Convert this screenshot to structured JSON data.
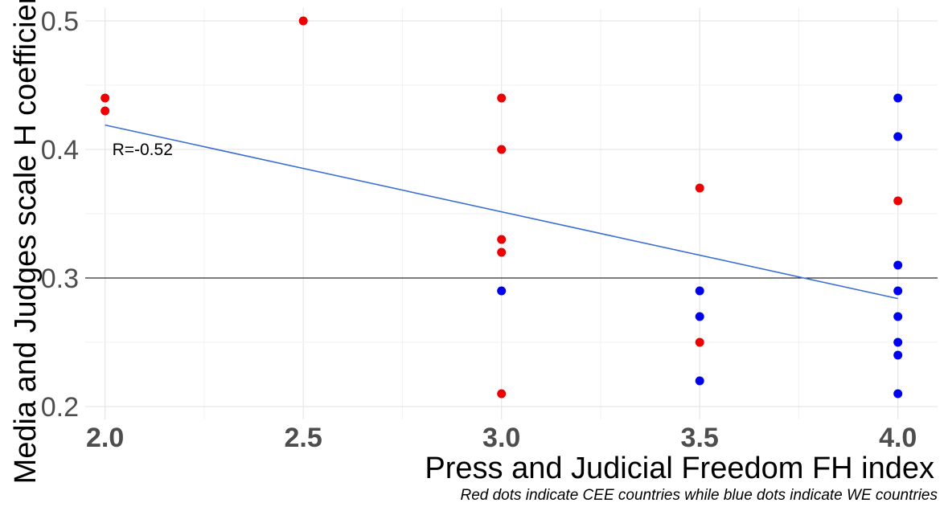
{
  "chart_data": {
    "type": "scatter",
    "xlabel": "Press and Judicial Freedom FH index",
    "ylabel": "Media and Judges scale H coefficient",
    "caption": "Red dots indicate CEE countries while blue dots indicate WE countries",
    "xlim": [
      1.95,
      4.1
    ],
    "ylim": [
      0.19,
      0.51
    ],
    "x_ticks": [
      "2.0",
      "2.5",
      "3.0",
      "3.5",
      "4.0"
    ],
    "y_ticks": [
      "0.2",
      "0.3",
      "0.4",
      "0.5"
    ],
    "grid": true,
    "reference_line": {
      "y": 0.3,
      "color": "#000000"
    },
    "trend_line": {
      "x": [
        2.0,
        4.0
      ],
      "y": [
        0.419,
        0.284
      ],
      "color": "#3b6fd4"
    },
    "annotation": {
      "text": "R=-0.52",
      "x": 2.01,
      "y": 0.4
    },
    "colors": {
      "CEE": "#ee0000",
      "WE": "#0000ee"
    },
    "series": [
      {
        "group": "CEE",
        "points": [
          [
            2.0,
            0.44
          ],
          [
            2.0,
            0.43
          ],
          [
            2.5,
            0.5
          ],
          [
            3.0,
            0.44
          ],
          [
            3.0,
            0.4
          ],
          [
            3.0,
            0.33
          ],
          [
            3.0,
            0.32
          ],
          [
            3.0,
            0.21
          ],
          [
            3.5,
            0.37
          ],
          [
            3.5,
            0.25
          ],
          [
            4.0,
            0.36
          ]
        ]
      },
      {
        "group": "WE",
        "points": [
          [
            3.0,
            0.29
          ],
          [
            3.5,
            0.29
          ],
          [
            3.5,
            0.27
          ],
          [
            3.5,
            0.22
          ],
          [
            4.0,
            0.44
          ],
          [
            4.0,
            0.41
          ],
          [
            4.0,
            0.31
          ],
          [
            4.0,
            0.29
          ],
          [
            4.0,
            0.27
          ],
          [
            4.0,
            0.25
          ],
          [
            4.0,
            0.24
          ],
          [
            4.0,
            0.21
          ]
        ]
      }
    ]
  }
}
